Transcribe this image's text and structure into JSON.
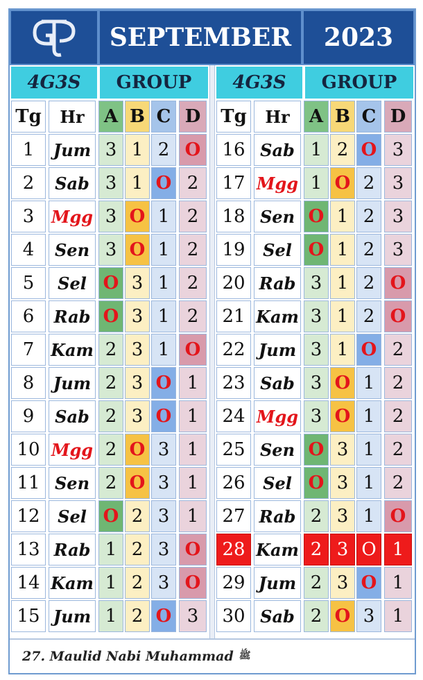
{
  "header": {
    "logo_text": "GTP",
    "month": "SEPTEMBER",
    "year": "2023"
  },
  "subheader": {
    "left_code": "4G3S",
    "left_group": "GROUP",
    "right_code": "4G3S",
    "right_group": "GROUP"
  },
  "columns": [
    "Tg",
    "Hr",
    "A",
    "B",
    "C",
    "D"
  ],
  "colors": {
    "header_bg": "#1e4f97",
    "subheader_bg": "#3fcde0",
    "zero_text": "#e3151b",
    "sunday_text": "#e3151b",
    "highlight_bg": "#ee1b1b"
  },
  "left_rows": [
    {
      "tg": "1",
      "hr": "Jum",
      "a": "3",
      "b": "1",
      "c": "2",
      "d": "O"
    },
    {
      "tg": "2",
      "hr": "Sab",
      "a": "3",
      "b": "1",
      "c": "O",
      "d": "2"
    },
    {
      "tg": "3",
      "hr": "Mgg",
      "a": "3",
      "b": "O",
      "c": "1",
      "d": "2"
    },
    {
      "tg": "4",
      "hr": "Sen",
      "a": "3",
      "b": "O",
      "c": "1",
      "d": "2"
    },
    {
      "tg": "5",
      "hr": "Sel",
      "a": "O",
      "b": "3",
      "c": "1",
      "d": "2"
    },
    {
      "tg": "6",
      "hr": "Rab",
      "a": "O",
      "b": "3",
      "c": "1",
      "d": "2"
    },
    {
      "tg": "7",
      "hr": "Kam",
      "a": "2",
      "b": "3",
      "c": "1",
      "d": "O"
    },
    {
      "tg": "8",
      "hr": "Jum",
      "a": "2",
      "b": "3",
      "c": "O",
      "d": "1"
    },
    {
      "tg": "9",
      "hr": "Sab",
      "a": "2",
      "b": "3",
      "c": "O",
      "d": "1"
    },
    {
      "tg": "10",
      "hr": "Mgg",
      "a": "2",
      "b": "O",
      "c": "3",
      "d": "1"
    },
    {
      "tg": "11",
      "hr": "Sen",
      "a": "2",
      "b": "O",
      "c": "3",
      "d": "1"
    },
    {
      "tg": "12",
      "hr": "Sel",
      "a": "O",
      "b": "2",
      "c": "3",
      "d": "1"
    },
    {
      "tg": "13",
      "hr": "Rab",
      "a": "1",
      "b": "2",
      "c": "3",
      "d": "O"
    },
    {
      "tg": "14",
      "hr": "Kam",
      "a": "1",
      "b": "2",
      "c": "3",
      "d": "O"
    },
    {
      "tg": "15",
      "hr": "Jum",
      "a": "1",
      "b": "2",
      "c": "O",
      "d": "3"
    }
  ],
  "right_rows": [
    {
      "tg": "16",
      "hr": "Sab",
      "a": "1",
      "b": "2",
      "c": "O",
      "d": "3"
    },
    {
      "tg": "17",
      "hr": "Mgg",
      "a": "1",
      "b": "O",
      "c": "2",
      "d": "3"
    },
    {
      "tg": "18",
      "hr": "Sen",
      "a": "O",
      "b": "1",
      "c": "2",
      "d": "3"
    },
    {
      "tg": "19",
      "hr": "Sel",
      "a": "O",
      "b": "1",
      "c": "2",
      "d": "3"
    },
    {
      "tg": "20",
      "hr": "Rab",
      "a": "3",
      "b": "1",
      "c": "2",
      "d": "O"
    },
    {
      "tg": "21",
      "hr": "Kam",
      "a": "3",
      "b": "1",
      "c": "2",
      "d": "O"
    },
    {
      "tg": "22",
      "hr": "Jum",
      "a": "3",
      "b": "1",
      "c": "O",
      "d": "2"
    },
    {
      "tg": "23",
      "hr": "Sab",
      "a": "3",
      "b": "O",
      "c": "1",
      "d": "2"
    },
    {
      "tg": "24",
      "hr": "Mgg",
      "a": "3",
      "b": "O",
      "c": "1",
      "d": "2"
    },
    {
      "tg": "25",
      "hr": "Sen",
      "a": "O",
      "b": "3",
      "c": "1",
      "d": "2"
    },
    {
      "tg": "26",
      "hr": "Sel",
      "a": "O",
      "b": "3",
      "c": "1",
      "d": "2"
    },
    {
      "tg": "27",
      "hr": "Rab",
      "a": "2",
      "b": "3",
      "c": "1",
      "d": "O"
    },
    {
      "tg": "28",
      "hr": "Kam",
      "a": "2",
      "b": "3",
      "c": "O",
      "d": "1",
      "highlight": true
    },
    {
      "tg": "29",
      "hr": "Jum",
      "a": "2",
      "b": "3",
      "c": "O",
      "d": "1"
    },
    {
      "tg": "30",
      "hr": "Sab",
      "a": "2",
      "b": "O",
      "c": "3",
      "d": "1"
    }
  ],
  "footer": {
    "note": "27. Maulid Nabi Muhammad",
    "honorific": "ﷺ"
  }
}
